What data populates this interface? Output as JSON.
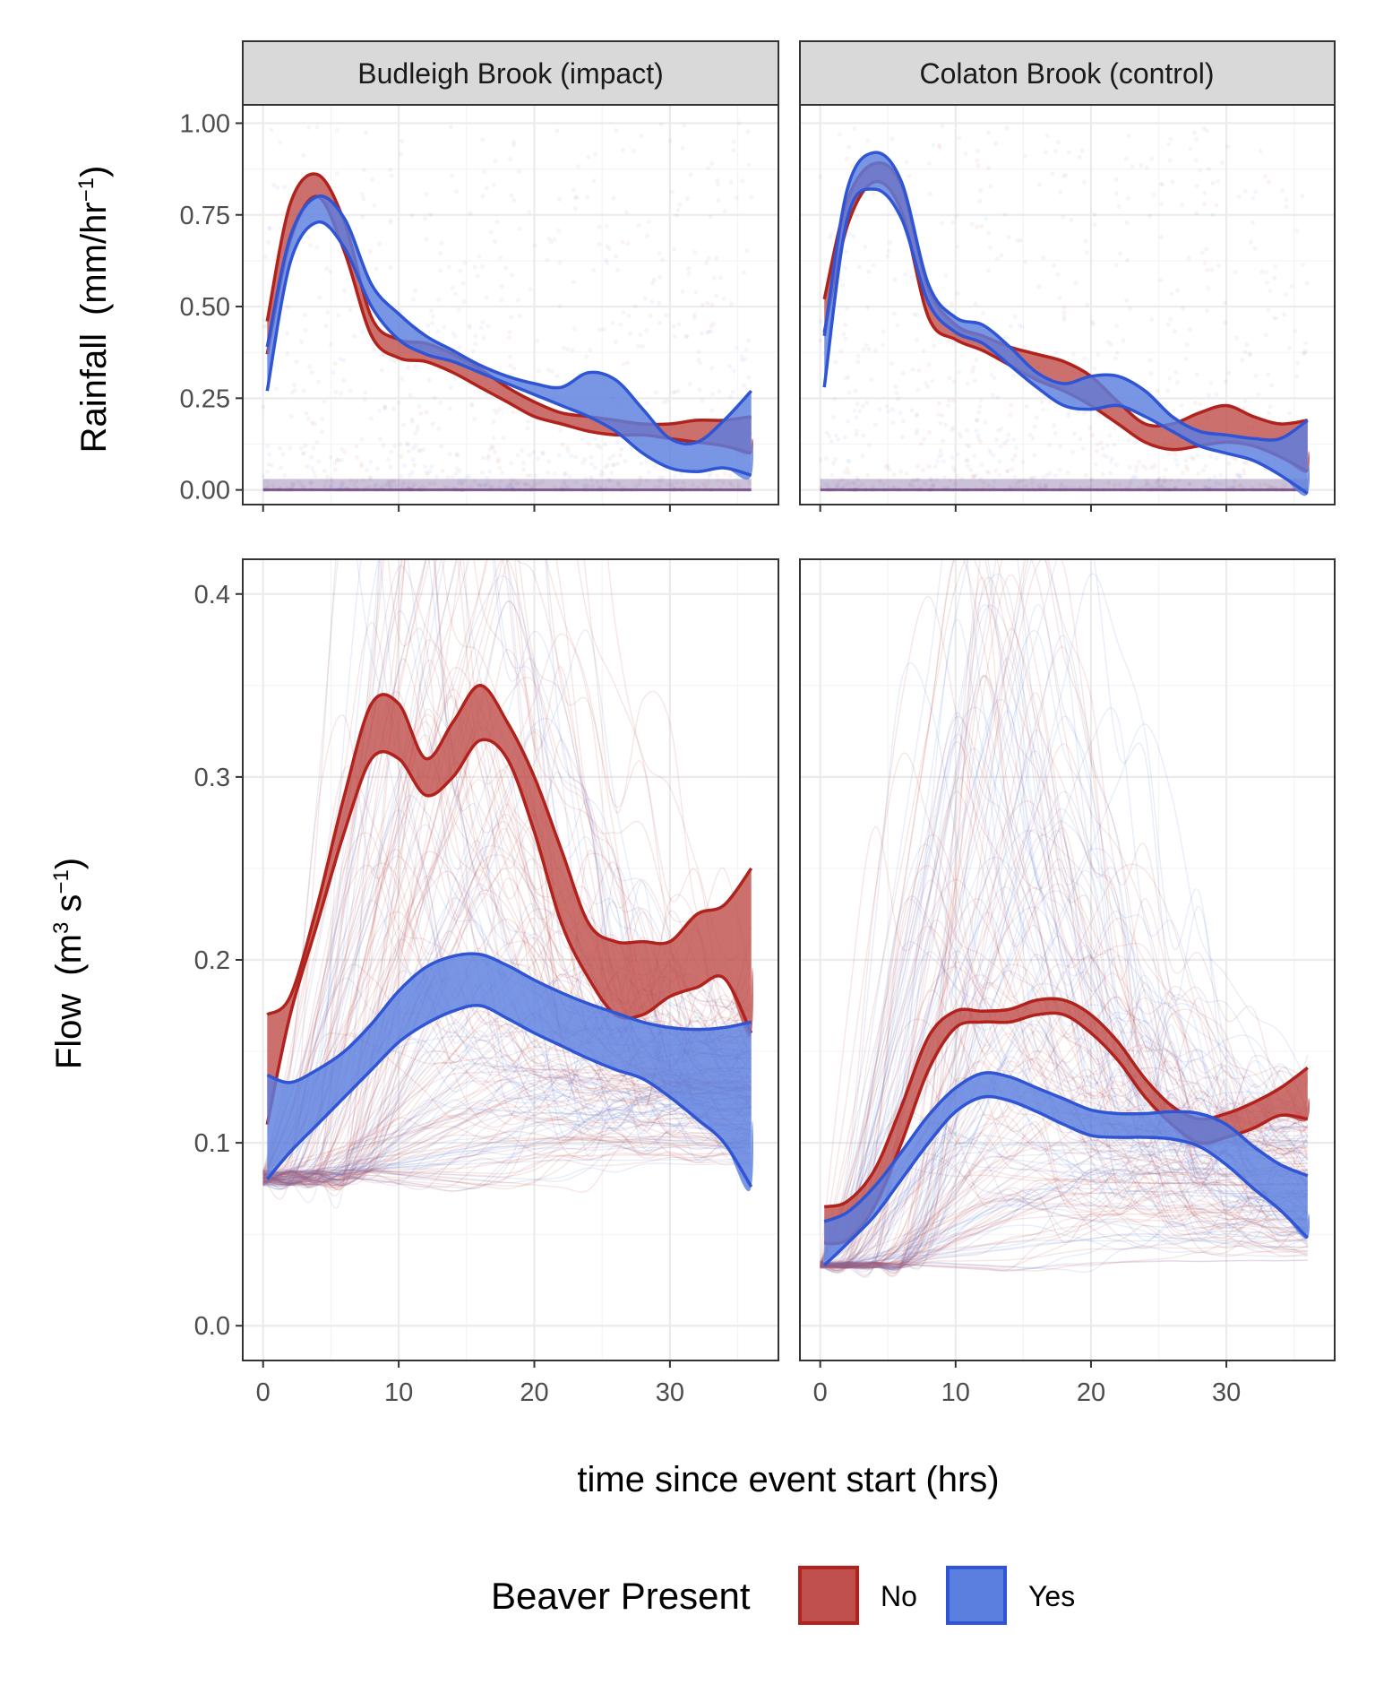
{
  "chart_data": {
    "type": "line",
    "facets": [
      "Budleigh Brook (impact)",
      "Colaton Brook (control)"
    ],
    "xlabel": "time since event start (hrs)",
    "x_ticks": [
      0,
      10,
      20,
      30
    ],
    "xlim": [
      -1.5,
      38
    ],
    "legend": {
      "title": "Beaver Present",
      "position": "bottom",
      "entries": [
        {
          "label": "No",
          "fill": "#c0504d",
          "stroke": "#b2221c"
        },
        {
          "label": "Yes",
          "fill": "#5b7fdf",
          "stroke": "#2f55d4"
        }
      ]
    },
    "grid": true,
    "colors": {
      "no_fill": "#c0504d",
      "no_line": "#b2221c",
      "yes_fill": "#5b7fdf",
      "yes_line": "#2f55d4",
      "strip_bg": "#d9d9d9",
      "gridline": "#ebebeb"
    },
    "rows": [
      {
        "id": "rainfall",
        "ylabel_main": "Rainfall",
        "ylabel_unit_pre": "(mm/hr",
        "ylabel_sup": "−1",
        "ylabel_unit_post": ")",
        "ylim": [
          -0.04,
          1.05
        ],
        "y_ticks": [
          0.0,
          0.25,
          0.5,
          0.75,
          1.0
        ],
        "y_tick_labels": [
          "0.00",
          "0.25",
          "0.50",
          "0.75",
          "1.00"
        ],
        "panels": [
          {
            "facet": "Budleigh Brook (impact)",
            "series": [
              {
                "name": "No",
                "x": [
                  0.3,
                  2,
                  4,
                  6,
                  8,
                  10,
                  12,
                  14,
                  16,
                  18,
                  20,
                  22,
                  24,
                  26,
                  28,
                  30,
                  32,
                  34,
                  36
                ],
                "lower": [
                  0.37,
                  0.68,
                  0.8,
                  0.65,
                  0.42,
                  0.36,
                  0.35,
                  0.32,
                  0.28,
                  0.24,
                  0.2,
                  0.18,
                  0.16,
                  0.15,
                  0.15,
                  0.14,
                  0.13,
                  0.12,
                  0.1
                ],
                "upper": [
                  0.46,
                  0.78,
                  0.86,
                  0.73,
                  0.47,
                  0.41,
                  0.4,
                  0.37,
                  0.33,
                  0.28,
                  0.24,
                  0.21,
                  0.2,
                  0.19,
                  0.18,
                  0.18,
                  0.19,
                  0.19,
                  0.2
                ]
              },
              {
                "name": "Yes",
                "x": [
                  0.3,
                  2,
                  4,
                  6,
                  8,
                  10,
                  12,
                  14,
                  16,
                  18,
                  20,
                  22,
                  24,
                  26,
                  28,
                  30,
                  32,
                  34,
                  36
                ],
                "lower": [
                  0.27,
                  0.62,
                  0.73,
                  0.66,
                  0.5,
                  0.41,
                  0.37,
                  0.35,
                  0.32,
                  0.29,
                  0.26,
                  0.23,
                  0.2,
                  0.16,
                  0.1,
                  0.06,
                  0.05,
                  0.06,
                  0.04
                ],
                "upper": [
                  0.39,
                  0.69,
                  0.8,
                  0.74,
                  0.56,
                  0.48,
                  0.42,
                  0.38,
                  0.34,
                  0.31,
                  0.29,
                  0.28,
                  0.32,
                  0.3,
                  0.22,
                  0.14,
                  0.13,
                  0.19,
                  0.27
                ]
              }
            ]
          },
          {
            "facet": "Colaton Brook (control)",
            "series": [
              {
                "name": "No",
                "x": [
                  0.3,
                  2,
                  4,
                  6,
                  8,
                  10,
                  12,
                  14,
                  16,
                  18,
                  20,
                  22,
                  24,
                  26,
                  28,
                  30,
                  32,
                  34,
                  36
                ],
                "lower": [
                  0.43,
                  0.72,
                  0.84,
                  0.76,
                  0.47,
                  0.41,
                  0.38,
                  0.34,
                  0.3,
                  0.27,
                  0.23,
                  0.18,
                  0.13,
                  0.11,
                  0.12,
                  0.13,
                  0.12,
                  0.09,
                  0.05
                ],
                "upper": [
                  0.52,
                  0.79,
                  0.89,
                  0.83,
                  0.55,
                  0.45,
                  0.42,
                  0.39,
                  0.37,
                  0.35,
                  0.31,
                  0.24,
                  0.18,
                  0.18,
                  0.21,
                  0.23,
                  0.2,
                  0.18,
                  0.19
                ]
              },
              {
                "name": "Yes",
                "x": [
                  0.3,
                  2,
                  4,
                  6,
                  8,
                  10,
                  12,
                  14,
                  16,
                  18,
                  20,
                  22,
                  24,
                  26,
                  28,
                  30,
                  32,
                  34,
                  36
                ],
                "lower": [
                  0.28,
                  0.74,
                  0.82,
                  0.74,
                  0.51,
                  0.43,
                  0.4,
                  0.34,
                  0.28,
                  0.23,
                  0.22,
                  0.23,
                  0.2,
                  0.16,
                  0.12,
                  0.1,
                  0.08,
                  0.04,
                  -0.01
                ],
                "upper": [
                  0.42,
                  0.82,
                  0.92,
                  0.84,
                  0.56,
                  0.47,
                  0.45,
                  0.39,
                  0.32,
                  0.29,
                  0.31,
                  0.31,
                  0.27,
                  0.2,
                  0.16,
                  0.15,
                  0.14,
                  0.14,
                  0.19
                ]
              }
            ]
          }
        ]
      },
      {
        "id": "flow",
        "ylabel_main": "Flow",
        "ylabel_unit_pre": "(m",
        "ylabel_sup": "3",
        "ylabel_mid": " s",
        "ylabel_sup2": "−1",
        "ylabel_unit_post": ")",
        "ylim": [
          -0.019,
          0.419
        ],
        "y_ticks": [
          0.0,
          0.1,
          0.2,
          0.3,
          0.4
        ],
        "y_tick_labels": [
          "0.0",
          "0.1",
          "0.2",
          "0.3",
          "0.4"
        ],
        "panels": [
          {
            "facet": "Budleigh Brook (impact)",
            "series": [
              {
                "name": "No",
                "x": [
                  0.3,
                  2,
                  4,
                  6,
                  8,
                  10,
                  12,
                  14,
                  16,
                  18,
                  20,
                  22,
                  24,
                  26,
                  28,
                  30,
                  32,
                  34,
                  36
                ],
                "lower": [
                  0.11,
                  0.17,
                  0.22,
                  0.27,
                  0.31,
                  0.31,
                  0.29,
                  0.3,
                  0.32,
                  0.31,
                  0.27,
                  0.22,
                  0.19,
                  0.17,
                  0.17,
                  0.18,
                  0.185,
                  0.19,
                  0.16
                ],
                "upper": [
                  0.17,
                  0.18,
                  0.23,
                  0.29,
                  0.34,
                  0.34,
                  0.31,
                  0.33,
                  0.35,
                  0.33,
                  0.3,
                  0.26,
                  0.22,
                  0.21,
                  0.21,
                  0.21,
                  0.225,
                  0.23,
                  0.25
                ]
              },
              {
                "name": "Yes",
                "x": [
                  0.3,
                  2,
                  4,
                  6,
                  8,
                  10,
                  12,
                  14,
                  16,
                  18,
                  20,
                  22,
                  24,
                  26,
                  28,
                  30,
                  32,
                  34,
                  36
                ],
                "lower": [
                  0.08,
                  0.095,
                  0.11,
                  0.125,
                  0.14,
                  0.155,
                  0.165,
                  0.172,
                  0.175,
                  0.168,
                  0.16,
                  0.153,
                  0.146,
                  0.14,
                  0.135,
                  0.125,
                  0.113,
                  0.1,
                  0.076
                ],
                "upper": [
                  0.137,
                  0.133,
                  0.14,
                  0.15,
                  0.165,
                  0.183,
                  0.196,
                  0.202,
                  0.203,
                  0.197,
                  0.189,
                  0.182,
                  0.176,
                  0.171,
                  0.166,
                  0.163,
                  0.162,
                  0.163,
                  0.166
                ]
              }
            ]
          },
          {
            "facet": "Colaton Brook (control)",
            "series": [
              {
                "name": "No",
                "x": [
                  0.3,
                  2,
                  4,
                  6,
                  8,
                  10,
                  12,
                  14,
                  16,
                  18,
                  20,
                  22,
                  24,
                  26,
                  28,
                  30,
                  32,
                  34,
                  36
                ],
                "lower": [
                  0.045,
                  0.047,
                  0.065,
                  0.1,
                  0.14,
                  0.163,
                  0.166,
                  0.166,
                  0.17,
                  0.17,
                  0.16,
                  0.145,
                  0.125,
                  0.11,
                  0.1,
                  0.103,
                  0.108,
                  0.115,
                  0.113
                ],
                "upper": [
                  0.065,
                  0.068,
                  0.085,
                  0.12,
                  0.158,
                  0.172,
                  0.172,
                  0.173,
                  0.178,
                  0.178,
                  0.17,
                  0.155,
                  0.135,
                  0.12,
                  0.113,
                  0.116,
                  0.122,
                  0.13,
                  0.141
                ]
              },
              {
                "name": "Yes",
                "x": [
                  0.3,
                  2,
                  4,
                  6,
                  8,
                  10,
                  12,
                  14,
                  16,
                  18,
                  20,
                  22,
                  24,
                  26,
                  28,
                  30,
                  32,
                  34,
                  36
                ],
                "lower": [
                  0.033,
                  0.045,
                  0.06,
                  0.08,
                  0.1,
                  0.117,
                  0.125,
                  0.123,
                  0.117,
                  0.11,
                  0.104,
                  0.103,
                  0.103,
                  0.102,
                  0.098,
                  0.088,
                  0.075,
                  0.063,
                  0.048
                ],
                "upper": [
                  0.057,
                  0.062,
                  0.076,
                  0.095,
                  0.115,
                  0.13,
                  0.138,
                  0.136,
                  0.13,
                  0.124,
                  0.118,
                  0.116,
                  0.116,
                  0.117,
                  0.116,
                  0.11,
                  0.098,
                  0.088,
                  0.082
                ]
              }
            ]
          }
        ]
      }
    ]
  }
}
